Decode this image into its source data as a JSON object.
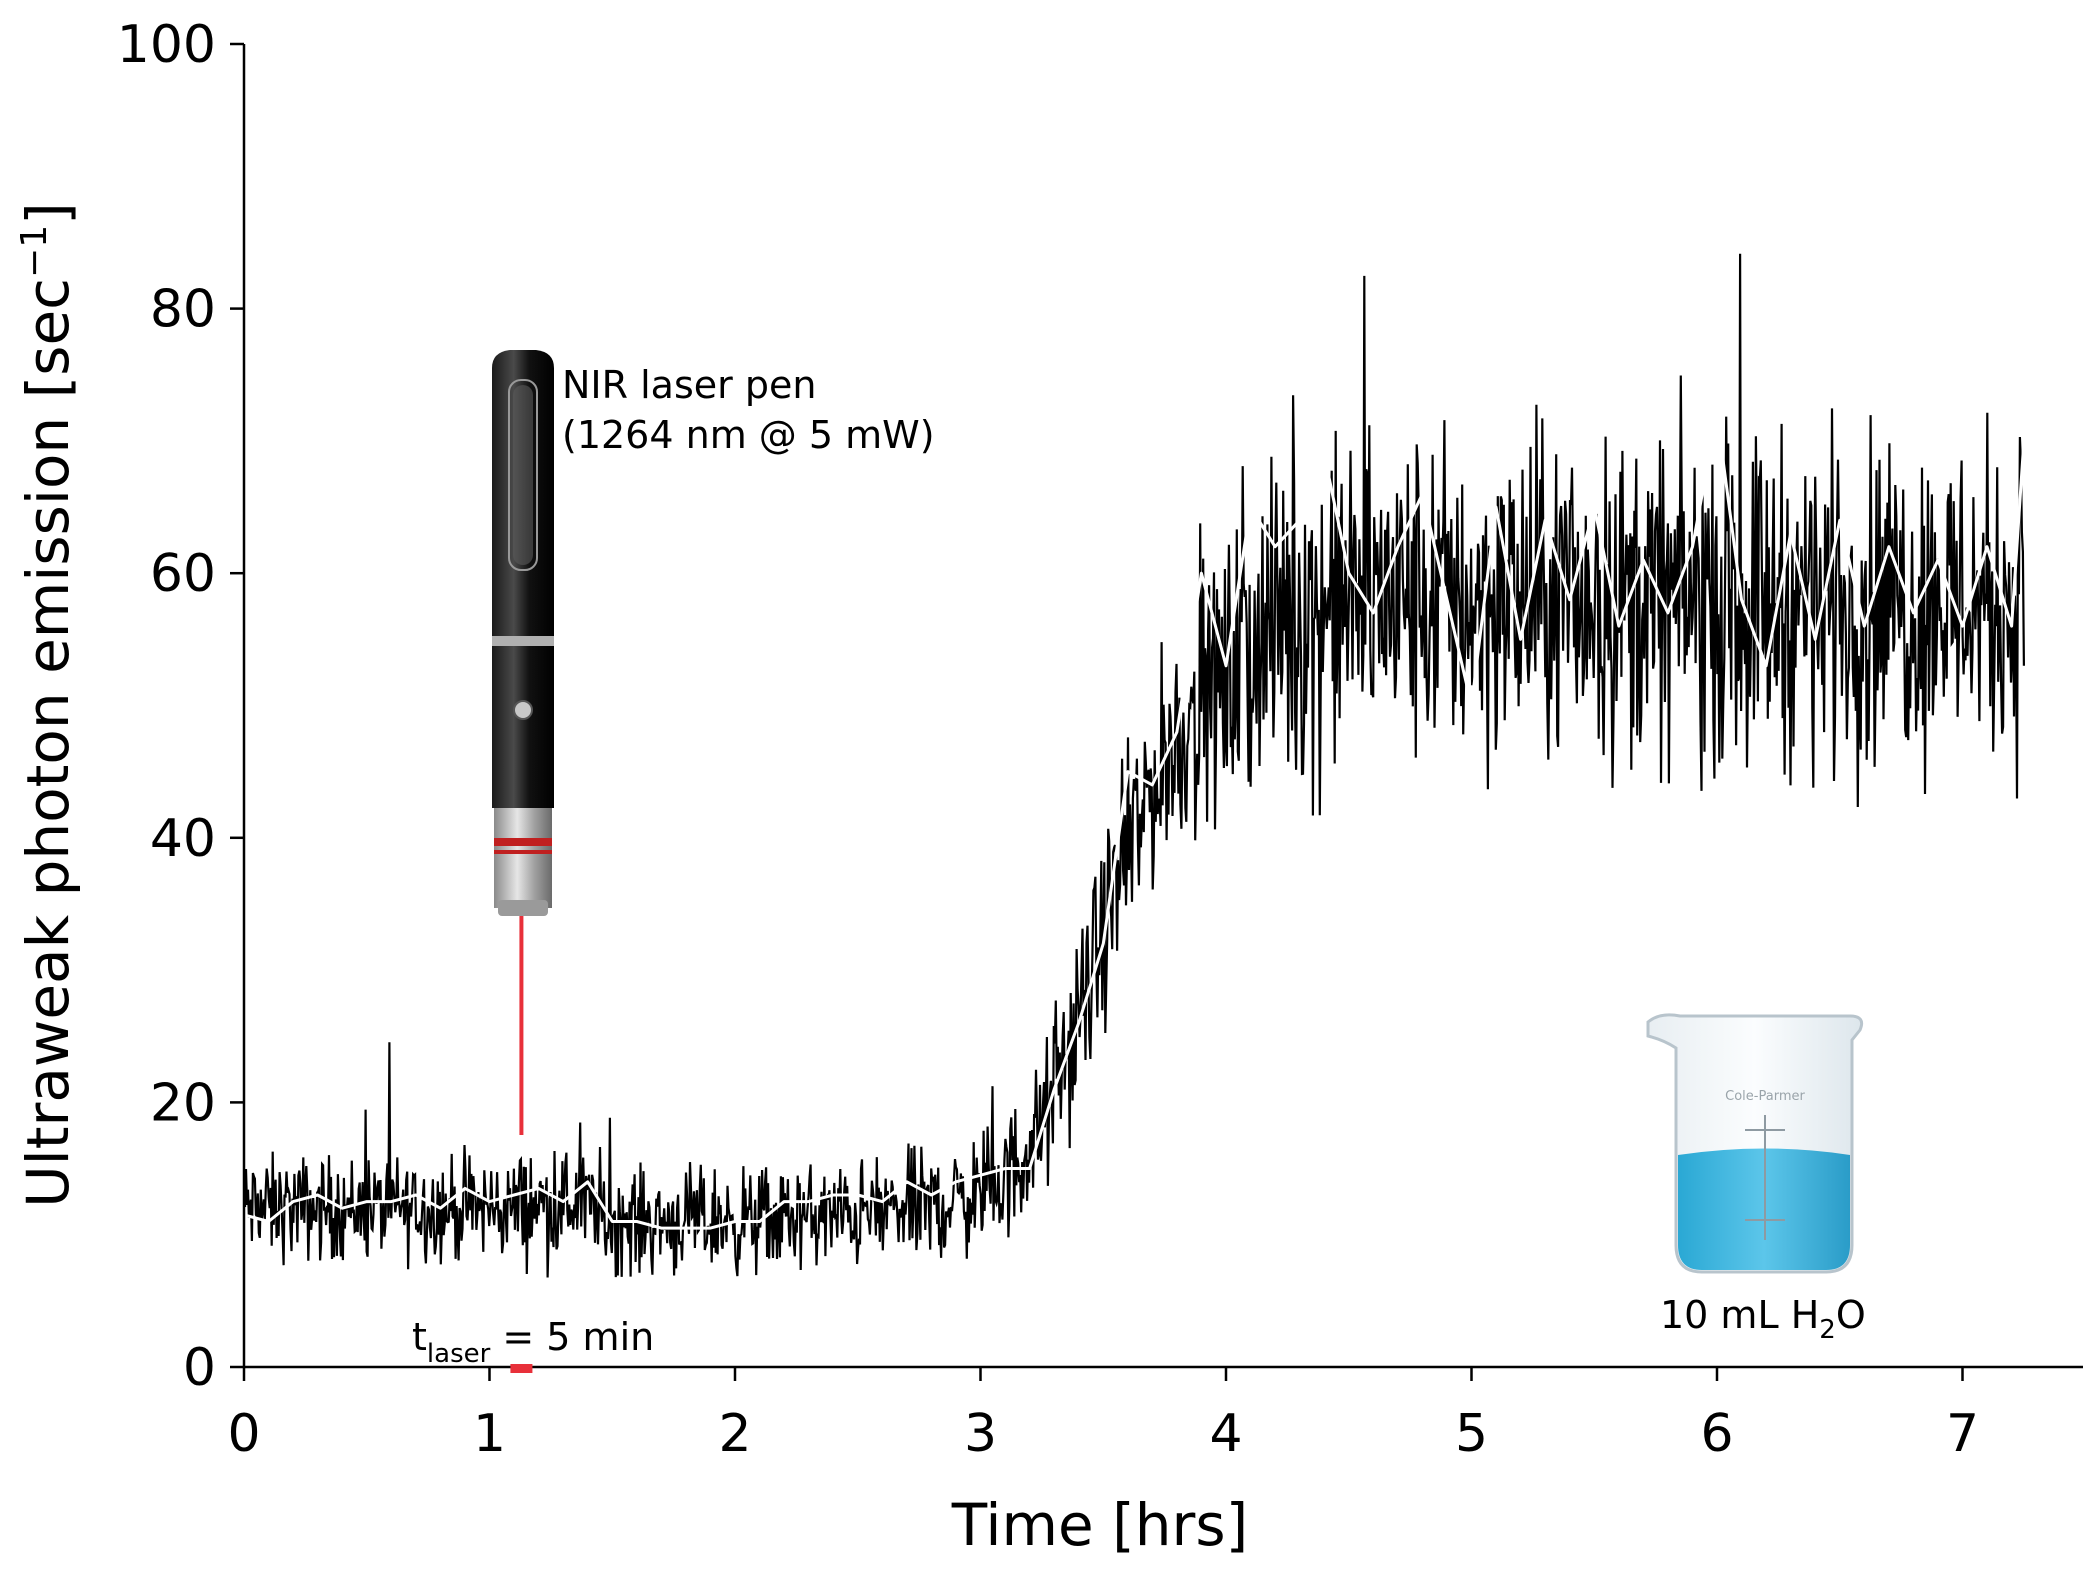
{
  "chart_data": {
    "type": "line",
    "title": "",
    "xlabel": "Time [hrs]",
    "ylabel": "Ultraweak photon emission [sec",
    "ylabel_unit_sup": "−1",
    "ylabel_close": "]",
    "xlim": [
      0,
      7.5
    ],
    "ylim": [
      0,
      100
    ],
    "x_ticks": [
      0,
      1,
      2,
      3,
      4,
      5,
      6,
      7
    ],
    "y_ticks": [
      0,
      20,
      40,
      60,
      80,
      100
    ],
    "grid": false,
    "series": [
      {
        "style": "noisy raw counts (black)",
        "color": "#000000",
        "envelope": {
          "x": [
            0,
            0.5,
            1.0,
            1.4,
            1.5,
            2.0,
            2.5,
            2.9,
            3.1,
            3.25,
            3.4,
            3.55,
            3.7,
            3.85,
            4.0,
            4.2,
            4.5,
            5.0,
            5.5,
            6.0,
            6.5,
            7.0,
            7.25
          ],
          "y_mid": [
            12,
            12,
            12,
            12.5,
            11,
            11,
            11.5,
            12.5,
            14,
            18,
            26,
            36,
            44,
            49,
            52,
            56,
            58,
            58,
            58,
            58,
            58,
            58,
            58
          ],
          "spread": [
            5,
            5,
            5,
            5.5,
            5,
            5,
            5,
            5.5,
            6,
            7,
            8,
            9,
            10,
            11,
            13,
            16,
            16,
            16,
            16,
            16,
            16,
            16,
            16
          ]
        }
      },
      {
        "style": "smoothed average (white)",
        "color": "#ffffff",
        "x": [
          0,
          0.1,
          0.2,
          0.3,
          0.4,
          0.5,
          0.6,
          0.7,
          0.8,
          0.9,
          1.0,
          1.1,
          1.2,
          1.3,
          1.4,
          1.5,
          1.6,
          1.7,
          1.8,
          1.9,
          2.0,
          2.1,
          2.2,
          2.3,
          2.4,
          2.5,
          2.6,
          2.7,
          2.8,
          2.9,
          3.0,
          3.1,
          3.2,
          3.3,
          3.4,
          3.5,
          3.6,
          3.7,
          3.8,
          3.9,
          4.0,
          4.1,
          4.2,
          4.3,
          4.4,
          4.5,
          4.6,
          4.7,
          4.8,
          4.9,
          5.0,
          5.1,
          5.2,
          5.3,
          5.4,
          5.5,
          5.6,
          5.7,
          5.8,
          5.9,
          6.0,
          6.1,
          6.2,
          6.3,
          6.4,
          6.5,
          6.6,
          6.7,
          6.8,
          6.9,
          7.0,
          7.1,
          7.2,
          7.25
        ],
        "y": [
          11.5,
          11,
          12.5,
          13,
          12,
          12.5,
          12.5,
          13,
          12,
          13.5,
          12.5,
          13,
          13.5,
          12.5,
          14,
          11,
          11,
          10.5,
          10.5,
          10.5,
          11,
          11,
          12.5,
          12.5,
          13,
          13,
          12.5,
          14,
          13,
          14,
          14.5,
          15,
          15,
          21,
          26,
          32,
          45,
          44,
          48,
          60,
          53,
          65,
          62,
          64,
          69,
          60,
          57,
          62,
          66,
          58,
          50,
          65,
          55,
          64,
          58,
          65,
          56,
          61,
          57,
          62,
          72,
          58,
          53,
          63,
          55,
          64,
          56,
          62,
          57,
          61,
          56,
          62,
          56,
          70
        ]
      }
    ],
    "annotations": {
      "laser_label_line1": "NIR laser pen",
      "laser_label_line2": "(1264 nm @ 5 mW)",
      "beam_color": "#e8303a",
      "laser_x": 1.13,
      "tlaser_prefix": "t",
      "tlaser_sub": "laser",
      "tlaser_suffix": " = 5 min",
      "tlaser_marker_color": "#e8303a",
      "beaker_prefix": "10 mL H",
      "beaker_sub": "2",
      "beaker_suffix": "O",
      "beaker_liquid_color": "#3fb4dc",
      "beaker_brand": "Cole-Parmer"
    }
  }
}
